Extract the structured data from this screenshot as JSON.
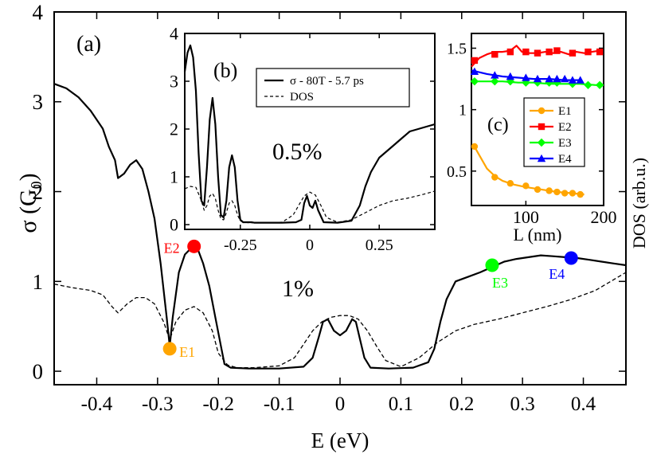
{
  "chart_data": [
    {
      "id": "a",
      "type": "line",
      "panel_label": "(a)",
      "xlabel": "E (eV)",
      "ylabel": "σ (G0)",
      "ylabel_base": "σ (G",
      "ylabel_sub": "0",
      "ylabel_close": ")",
      "y2label": "DOS (arb.u.)",
      "xlim": [
        -0.47,
        0.47
      ],
      "ylim": [
        -0.15,
        4.0
      ],
      "xticks": [
        -0.4,
        -0.3,
        -0.2,
        -0.1,
        0,
        0.1,
        0.2,
        0.3,
        0.4
      ],
      "xtick_labels": [
        "-0.4",
        "-0.3",
        "-0.2",
        "-0.1",
        "0",
        "0.1",
        "0.2",
        "0.3",
        "0.4"
      ],
      "yticks": [
        0,
        1,
        2,
        3,
        4
      ],
      "ytick_labels": [
        "0",
        "1",
        "2",
        "3",
        "4"
      ],
      "annotation": "1%",
      "series": [
        {
          "name": "σ",
          "style": "solid",
          "x": [
            -0.47,
            -0.45,
            -0.43,
            -0.41,
            -0.39,
            -0.38,
            -0.37,
            -0.365,
            -0.355,
            -0.345,
            -0.335,
            -0.325,
            -0.315,
            -0.305,
            -0.295,
            -0.285,
            -0.28,
            -0.275,
            -0.265,
            -0.255,
            -0.245,
            -0.24,
            -0.235,
            -0.225,
            -0.215,
            -0.205,
            -0.195,
            -0.19,
            -0.18,
            -0.15,
            -0.1,
            -0.06,
            -0.045,
            -0.035,
            -0.028,
            -0.02,
            -0.01,
            0,
            0.01,
            0.02,
            0.026,
            0.033,
            0.04,
            0.05,
            0.08,
            0.12,
            0.145,
            0.155,
            0.165,
            0.175,
            0.19,
            0.21,
            0.23,
            0.25,
            0.27,
            0.29,
            0.31,
            0.33,
            0.35,
            0.37,
            0.39,
            0.41,
            0.43,
            0.45,
            0.47
          ],
          "y": [
            3.2,
            3.15,
            3.05,
            2.9,
            2.7,
            2.5,
            2.35,
            2.15,
            2.2,
            2.3,
            2.35,
            2.25,
            2.0,
            1.7,
            1.2,
            0.6,
            0.28,
            0.6,
            1.1,
            1.3,
            1.37,
            1.39,
            1.38,
            1.2,
            0.95,
            0.6,
            0.25,
            0.08,
            0.04,
            0.03,
            0.03,
            0.05,
            0.15,
            0.38,
            0.55,
            0.58,
            0.45,
            0.4,
            0.45,
            0.58,
            0.55,
            0.35,
            0.15,
            0.04,
            0.03,
            0.04,
            0.1,
            0.25,
            0.55,
            0.8,
            1.0,
            1.05,
            1.1,
            1.16,
            1.22,
            1.25,
            1.27,
            1.29,
            1.28,
            1.27,
            1.26,
            1.24,
            1.22,
            1.2,
            1.18
          ]
        },
        {
          "name": "DOS",
          "style": "dashed",
          "x": [
            -0.47,
            -0.44,
            -0.41,
            -0.39,
            -0.375,
            -0.365,
            -0.35,
            -0.335,
            -0.32,
            -0.305,
            -0.29,
            -0.28,
            -0.27,
            -0.255,
            -0.24,
            -0.225,
            -0.21,
            -0.2,
            -0.185,
            -0.17,
            -0.14,
            -0.1,
            -0.075,
            -0.06,
            -0.045,
            -0.03,
            -0.015,
            0,
            0.015,
            0.03,
            0.045,
            0.06,
            0.075,
            0.1,
            0.13,
            0.16,
            0.19,
            0.22,
            0.26,
            0.3,
            0.34,
            0.38,
            0.42,
            0.47
          ],
          "y": [
            0.97,
            0.93,
            0.9,
            0.85,
            0.72,
            0.65,
            0.75,
            0.82,
            0.82,
            0.75,
            0.55,
            0.35,
            0.55,
            0.68,
            0.72,
            0.65,
            0.45,
            0.2,
            0.07,
            0.04,
            0.04,
            0.06,
            0.15,
            0.3,
            0.45,
            0.55,
            0.6,
            0.62,
            0.62,
            0.58,
            0.45,
            0.28,
            0.12,
            0.05,
            0.15,
            0.32,
            0.45,
            0.52,
            0.58,
            0.65,
            0.72,
            0.8,
            0.9,
            1.1
          ]
        }
      ],
      "markers": [
        {
          "label": "E1",
          "x": -0.28,
          "y": 0.25,
          "color": "#ffa500"
        },
        {
          "label": "E2",
          "x": -0.24,
          "y": 1.39,
          "color": "#ff0000"
        },
        {
          "label": "E3",
          "x": 0.25,
          "y": 1.18,
          "color": "#00ff00"
        },
        {
          "label": "E4",
          "x": 0.38,
          "y": 1.26,
          "color": "#0000ff"
        }
      ]
    },
    {
      "id": "b",
      "type": "line",
      "panel_label": "(b)",
      "xlim": [
        -0.45,
        0.45
      ],
      "ylim": [
        -0.1,
        4.0
      ],
      "xticks": [
        -0.25,
        0,
        0.25
      ],
      "xtick_labels": [
        "-0.25",
        "0",
        "0.25"
      ],
      "yticks": [
        0,
        1,
        2,
        3,
        4
      ],
      "ytick_labels": [
        "0",
        "1",
        "2",
        "3",
        "4"
      ],
      "annotation": "0.5%",
      "legend": [
        "σ - 80T - 5.7 ps",
        "DOS"
      ],
      "series": [
        {
          "name": "σ - 80T - 5.7 ps",
          "style": "solid",
          "x": [
            -0.45,
            -0.44,
            -0.43,
            -0.42,
            -0.41,
            -0.4,
            -0.39,
            -0.38,
            -0.37,
            -0.36,
            -0.35,
            -0.34,
            -0.33,
            -0.32,
            -0.31,
            -0.3,
            -0.29,
            -0.28,
            -0.27,
            -0.26,
            -0.25,
            -0.24,
            -0.23,
            -0.22,
            -0.21,
            -0.2,
            -0.15,
            -0.1,
            -0.05,
            -0.03,
            -0.02,
            -0.01,
            0,
            0.01,
            0.02,
            0.03,
            0.05,
            0.1,
            0.15,
            0.18,
            0.2,
            0.22,
            0.25,
            0.28,
            0.3,
            0.33,
            0.36,
            0.39,
            0.42,
            0.45
          ],
          "y": [
            3.2,
            3.6,
            3.75,
            3.5,
            2.8,
            1.5,
            0.5,
            0.4,
            1.2,
            2.2,
            2.65,
            2.1,
            1.0,
            0.2,
            0.15,
            0.5,
            1.2,
            1.45,
            1.2,
            0.5,
            0.1,
            0.05,
            0.05,
            0.05,
            0.05,
            0.04,
            0.04,
            0.04,
            0.05,
            0.1,
            0.45,
            0.6,
            0.4,
            0.35,
            0.5,
            0.3,
            0.05,
            0.04,
            0.08,
            0.4,
            0.8,
            1.1,
            1.4,
            1.55,
            1.65,
            1.8,
            1.95,
            2.0,
            2.05,
            2.1
          ]
        },
        {
          "name": "DOS",
          "style": "dashed",
          "x": [
            -0.45,
            -0.43,
            -0.41,
            -0.39,
            -0.38,
            -0.37,
            -0.36,
            -0.35,
            -0.34,
            -0.33,
            -0.32,
            -0.31,
            -0.3,
            -0.29,
            -0.28,
            -0.27,
            -0.26,
            -0.25,
            -0.24,
            -0.22,
            -0.2,
            -0.15,
            -0.1,
            -0.06,
            -0.04,
            -0.02,
            0,
            0.02,
            0.04,
            0.06,
            0.1,
            0.15,
            0.2,
            0.25,
            0.3,
            0.35,
            0.4,
            0.45
          ],
          "y": [
            0.75,
            0.8,
            0.78,
            0.5,
            0.3,
            0.4,
            0.6,
            0.65,
            0.55,
            0.3,
            0.12,
            0.1,
            0.25,
            0.45,
            0.5,
            0.4,
            0.2,
            0.08,
            0.05,
            0.04,
            0.04,
            0.04,
            0.05,
            0.2,
            0.4,
            0.6,
            0.68,
            0.62,
            0.4,
            0.15,
            0.05,
            0.1,
            0.25,
            0.4,
            0.5,
            0.55,
            0.62,
            0.7
          ]
        }
      ]
    },
    {
      "id": "c",
      "type": "line",
      "panel_label": "(c)",
      "xlabel": "L (nm)",
      "xlim": [
        30,
        200
      ],
      "ylim": [
        0.22,
        1.62
      ],
      "xticks": [
        100,
        200
      ],
      "xtick_labels": [
        "100",
        "200"
      ],
      "yticks": [
        0.5,
        1,
        1.5
      ],
      "ytick_labels": [
        "0.5",
        "1",
        "1.5"
      ],
      "legend": [
        "E1",
        "E2",
        "E3",
        "E4"
      ],
      "series": [
        {
          "name": "E1",
          "color": "#ffa500",
          "marker": "circle",
          "x": [
            34,
            60,
            80,
            100,
            115,
            130,
            140,
            150,
            160,
            170
          ],
          "y": [
            0.7,
            0.45,
            0.4,
            0.38,
            0.35,
            0.34,
            0.33,
            0.32,
            0.32,
            0.31
          ],
          "fit_x": [
            32,
            40,
            50,
            60,
            70,
            85,
            100,
            120,
            140,
            160,
            175
          ],
          "fit_y": [
            0.72,
            0.63,
            0.52,
            0.46,
            0.42,
            0.39,
            0.37,
            0.35,
            0.33,
            0.32,
            0.31
          ]
        },
        {
          "name": "E2",
          "color": "#ff0000",
          "marker": "square",
          "x": [
            34,
            60,
            80,
            100,
            115,
            130,
            140,
            160,
            180,
            195
          ],
          "y": [
            1.4,
            1.45,
            1.47,
            1.47,
            1.46,
            1.47,
            1.48,
            1.46,
            1.47,
            1.47
          ],
          "fit_x": [
            30,
            40,
            50,
            60,
            70,
            80,
            88,
            95,
            105,
            115,
            125,
            135,
            145,
            155,
            165,
            175,
            185,
            195
          ],
          "fit_y": [
            1.35,
            1.42,
            1.45,
            1.47,
            1.47,
            1.48,
            1.52,
            1.47,
            1.46,
            1.46,
            1.47,
            1.46,
            1.47,
            1.45,
            1.47,
            1.46,
            1.47,
            1.48
          ]
        },
        {
          "name": "E3",
          "color": "#00ff00",
          "marker": "diamond",
          "x": [
            34,
            60,
            80,
            100,
            115,
            130,
            140,
            160,
            180,
            195
          ],
          "y": [
            1.23,
            1.23,
            1.23,
            1.22,
            1.22,
            1.22,
            1.22,
            1.21,
            1.2,
            1.2
          ],
          "fit_x": [
            30,
            50,
            70,
            90,
            110,
            130,
            150,
            170,
            190,
            200
          ],
          "fit_y": [
            1.23,
            1.23,
            1.23,
            1.22,
            1.22,
            1.21,
            1.21,
            1.21,
            1.2,
            1.2
          ]
        },
        {
          "name": "E4",
          "color": "#0000ff",
          "marker": "triangle",
          "x": [
            34,
            60,
            80,
            100,
            115,
            130,
            140,
            150,
            160,
            170
          ],
          "y": [
            1.31,
            1.28,
            1.27,
            1.26,
            1.25,
            1.25,
            1.25,
            1.25,
            1.24,
            1.24
          ],
          "fit_x": [
            30,
            50,
            70,
            90,
            110,
            130,
            150,
            170
          ],
          "fit_y": [
            1.32,
            1.29,
            1.27,
            1.26,
            1.25,
            1.25,
            1.24,
            1.24
          ]
        }
      ]
    }
  ]
}
